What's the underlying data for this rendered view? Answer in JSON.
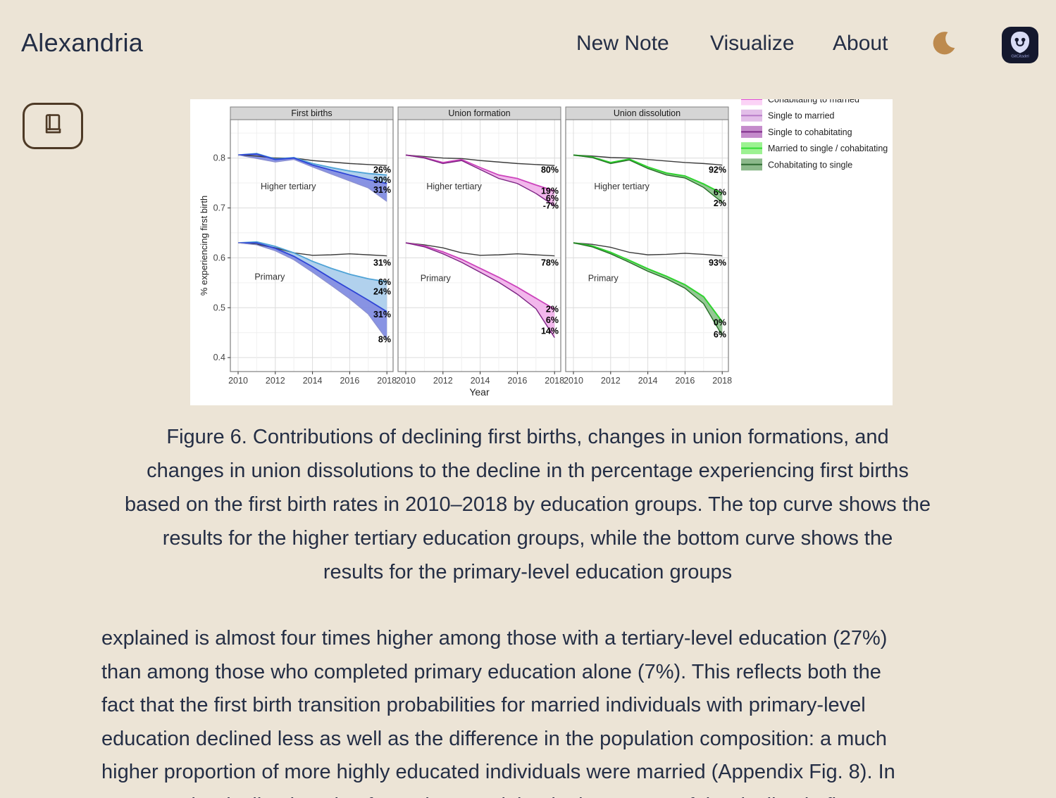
{
  "header": {
    "brand": "Alexandria",
    "nav": [
      {
        "label": "New Note"
      },
      {
        "label": "Visualize"
      },
      {
        "label": "About"
      }
    ]
  },
  "badge": {
    "app_name": "GitCitadel"
  },
  "theme": {
    "background": "#ece4d6",
    "text": "#242e45",
    "moon": "#bd8a4e",
    "button_outline": "#4e3a26",
    "badge_background": "#14182e"
  },
  "figure": {
    "caption": "Figure 6. Contributions of declining first births, changes in union formations, and\nchanges in union dissolutions to the decline in th percentage experiencing first births\nbased on the first birth rates in 2010–2018 by education groups. The top curve shows the\nresults for the higher tertiary education groups, while the bottom curve shows the\nresults for the primary-level education groups"
  },
  "article": {
    "paragraph": "explained is almost four times higher among those with a tertiary-level education (27%)\nthan among those who completed primary education alone (7%). This reflects both the\nfact that the first birth transition probabilities for married individuals with primary-level\neducation declined less as well as the difference in the population composition: a much\nhigher proportion of more highly educated individuals were married (Appendix Fig. 8). In\ncontrast, the decline in union formations explained a larger part of the decline in first"
  },
  "chart_data": {
    "type": "line",
    "xlabel": "Year",
    "ylabel": "% experiencing first birth",
    "x": [
      2010,
      2011,
      2012,
      2013,
      2014,
      2015,
      2016,
      2017,
      2018
    ],
    "xticks": [
      2010,
      2012,
      2014,
      2016,
      2018
    ],
    "yticks": [
      0.4,
      0.5,
      0.6,
      0.7,
      0.8
    ],
    "ylim": [
      0.372,
      0.877
    ],
    "grid": true,
    "legend_position": "top-right-outside",
    "legend": [
      {
        "label": "Cohabitating to married",
        "fill": "#fbd3f6",
        "line": "#e14fd8",
        "cut_off_top": true
      },
      {
        "label": "Single to married",
        "fill": "#e2bee8",
        "line": "#b87cc8"
      },
      {
        "label": "Single to cohabitating",
        "fill": "#c48bcb",
        "line": "#7e2d8a"
      },
      {
        "label": "Married to single / cohabitating",
        "fill": "#9cf291",
        "line": "#33dd33"
      },
      {
        "label": "Cohabitating to single",
        "fill": "#8cb98b",
        "line": "#2f6b33"
      }
    ],
    "panels": [
      {
        "title": "First births",
        "groups": [
          {
            "name": "Higher tertiary",
            "name_pos": [
              2012.7,
              0.737
            ],
            "observed": [
              0.806,
              0.804,
              0.8,
              0.8,
              0.795,
              0.792,
              0.789,
              0.787,
              0.785
            ],
            "curves": [
              {
                "values": [
                  0.806,
                  0.809,
                  0.798,
                  0.801,
                  0.789,
                  0.781,
                  0.774,
                  0.769,
                  0.766
                ],
                "color": "#4fa3d6",
                "width": 1.8
              },
              {
                "values": [
                  0.806,
                  0.808,
                  0.797,
                  0.8,
                  0.786,
                  0.776,
                  0.766,
                  0.757,
                  0.749
                ],
                "color": "#2f45d6",
                "width": 1.8
              },
              {
                "values": [
                  0.806,
                  0.799,
                  0.792,
                  0.797,
                  0.782,
                  0.768,
                  0.754,
                  0.74,
                  0.713
                ],
                "color": "#8c90cf",
                "width": 1.2
              }
            ],
            "fills": [
              {
                "upper": 0,
                "lower": 1,
                "color": "#adcfec",
                "opacity": 0.95
              },
              {
                "upper": 1,
                "lower": 2,
                "color": "#7b87e0",
                "opacity": 0.9
              }
            ],
            "end_labels": [
              {
                "text": "26%",
                "value": 0.776
              },
              {
                "text": "30%",
                "value": 0.756
              },
              {
                "text": "31%",
                "value": 0.736
              }
            ]
          },
          {
            "name": "Primary",
            "name_pos": [
              2011.7,
              0.556
            ],
            "observed": [
              0.63,
              0.627,
              0.62,
              0.61,
              0.605,
              0.606,
              0.608,
              0.606,
              0.604
            ],
            "curves": [
              {
                "values": [
                  0.63,
                  0.632,
                  0.623,
                  0.61,
                  0.593,
                  0.579,
                  0.567,
                  0.558,
                  0.552
                ],
                "color": "#4fa3d6",
                "width": 1.8
              },
              {
                "values": [
                  0.63,
                  0.63,
                  0.619,
                  0.603,
                  0.582,
                  0.559,
                  0.537,
                  0.515,
                  0.492
                ],
                "color": "#2f45d6",
                "width": 1.8
              },
              {
                "values": [
                  0.63,
                  0.626,
                  0.614,
                  0.596,
                  0.571,
                  0.545,
                  0.518,
                  0.487,
                  0.436
                ],
                "color": "#8c90cf",
                "width": 1.2
              }
            ],
            "fills": [
              {
                "upper": 0,
                "lower": 1,
                "color": "#adcfec",
                "opacity": 0.95
              },
              {
                "upper": 1,
                "lower": 2,
                "color": "#7b87e0",
                "opacity": 0.9
              }
            ],
            "end_labels": [
              {
                "text": "31%",
                "value": 0.59
              },
              {
                "text": "6%",
                "value": 0.551
              },
              {
                "text": "24%",
                "value": 0.532
              },
              {
                "text": "31%",
                "value": 0.486
              },
              {
                "text": "8%",
                "value": 0.436
              }
            ]
          }
        ]
      },
      {
        "title": "Union formation",
        "groups": [
          {
            "name": "Higher tertiary",
            "name_pos": [
              2012.6,
              0.737
            ],
            "observed": [
              0.806,
              0.803,
              0.8,
              0.799,
              0.795,
              0.792,
              0.789,
              0.787,
              0.785
            ],
            "curves": [
              {
                "values": [
                  0.806,
                  0.801,
                  0.791,
                  0.797,
                  0.781,
                  0.766,
                  0.759,
                  0.746,
                  0.734
                ],
                "color": "#cc44bc",
                "width": 1.8
              },
              {
                "values": [
                  0.806,
                  0.8,
                  0.789,
                  0.795,
                  0.777,
                  0.759,
                  0.749,
                  0.729,
                  0.704
                ],
                "color": "#7c2383",
                "width": 1.4
              }
            ],
            "fills": [
              {
                "upper": 0,
                "lower": 1,
                "color": "#f1b3eb",
                "opacity": 0.95
              }
            ],
            "end_labels": [
              {
                "text": "80%",
                "value": 0.776
              },
              {
                "text": "19%",
                "value": 0.734
              },
              {
                "text": "6%",
                "value": 0.719
              },
              {
                "text": "-7%",
                "value": 0.704
              }
            ]
          },
          {
            "name": "Primary",
            "name_pos": [
              2011.6,
              0.553
            ],
            "observed": [
              0.63,
              0.626,
              0.62,
              0.61,
              0.605,
              0.606,
              0.608,
              0.606,
              0.604
            ],
            "curves": [
              {
                "values": [
                  0.63,
                  0.624,
                  0.612,
                  0.597,
                  0.579,
                  0.561,
                  0.541,
                  0.519,
                  0.497
                ],
                "color": "#cc44bc",
                "width": 1.8
              },
              {
                "values": [
                  0.63,
                  0.622,
                  0.608,
                  0.591,
                  0.571,
                  0.551,
                  0.527,
                  0.498,
                  0.44
                ],
                "color": "#7c2383",
                "width": 1.4
              }
            ],
            "fills": [
              {
                "upper": 0,
                "lower": 1,
                "color": "#f1b3eb",
                "opacity": 0.95
              }
            ],
            "end_labels": [
              {
                "text": "78%",
                "value": 0.59
              },
              {
                "text": "2%",
                "value": 0.497
              },
              {
                "text": "6%",
                "value": 0.475
              },
              {
                "text": "14%",
                "value": 0.453
              }
            ]
          }
        ]
      },
      {
        "title": "Union dissolution",
        "groups": [
          {
            "name": "Higher tertiary",
            "name_pos": [
              2012.6,
              0.737
            ],
            "observed": [
              0.806,
              0.804,
              0.801,
              0.8,
              0.797,
              0.794,
              0.791,
              0.789,
              0.786
            ],
            "curves": [
              {
                "values": [
                  0.806,
                  0.802,
                  0.791,
                  0.798,
                  0.782,
                  0.77,
                  0.764,
                  0.748,
                  0.729
                ],
                "color": "#2fd32f",
                "width": 2
              },
              {
                "values": [
                  0.806,
                  0.801,
                  0.789,
                  0.796,
                  0.779,
                  0.766,
                  0.76,
                  0.741,
                  0.711
                ],
                "color": "#256e25",
                "width": 1.4
              }
            ],
            "fills": [
              {
                "upper": 0,
                "lower": 1,
                "color": "#8fc48f",
                "opacity": 0.95
              }
            ],
            "end_labels": [
              {
                "text": "92%",
                "value": 0.776
              },
              {
                "text": "6%",
                "value": 0.731
              },
              {
                "text": "2%",
                "value": 0.709
              }
            ]
          },
          {
            "name": "Primary",
            "name_pos": [
              2011.6,
              0.553
            ],
            "observed": [
              0.63,
              0.627,
              0.621,
              0.611,
              0.606,
              0.607,
              0.609,
              0.607,
              0.604
            ],
            "curves": [
              {
                "values": [
                  0.63,
                  0.624,
                  0.611,
                  0.595,
                  0.578,
                  0.563,
                  0.546,
                  0.522,
                  0.472
                ],
                "color": "#2fd32f",
                "width": 2
              },
              {
                "values": [
                  0.63,
                  0.622,
                  0.608,
                  0.591,
                  0.573,
                  0.558,
                  0.539,
                  0.508,
                  0.444
                ],
                "color": "#256e25",
                "width": 1.4
              }
            ],
            "fills": [
              {
                "upper": 0,
                "lower": 1,
                "color": "#8fc48f",
                "opacity": 0.95
              }
            ],
            "end_labels": [
              {
                "text": "93%",
                "value": 0.59
              },
              {
                "text": "0%",
                "value": 0.47
              },
              {
                "text": "6%",
                "value": 0.446
              }
            ]
          }
        ]
      }
    ]
  }
}
